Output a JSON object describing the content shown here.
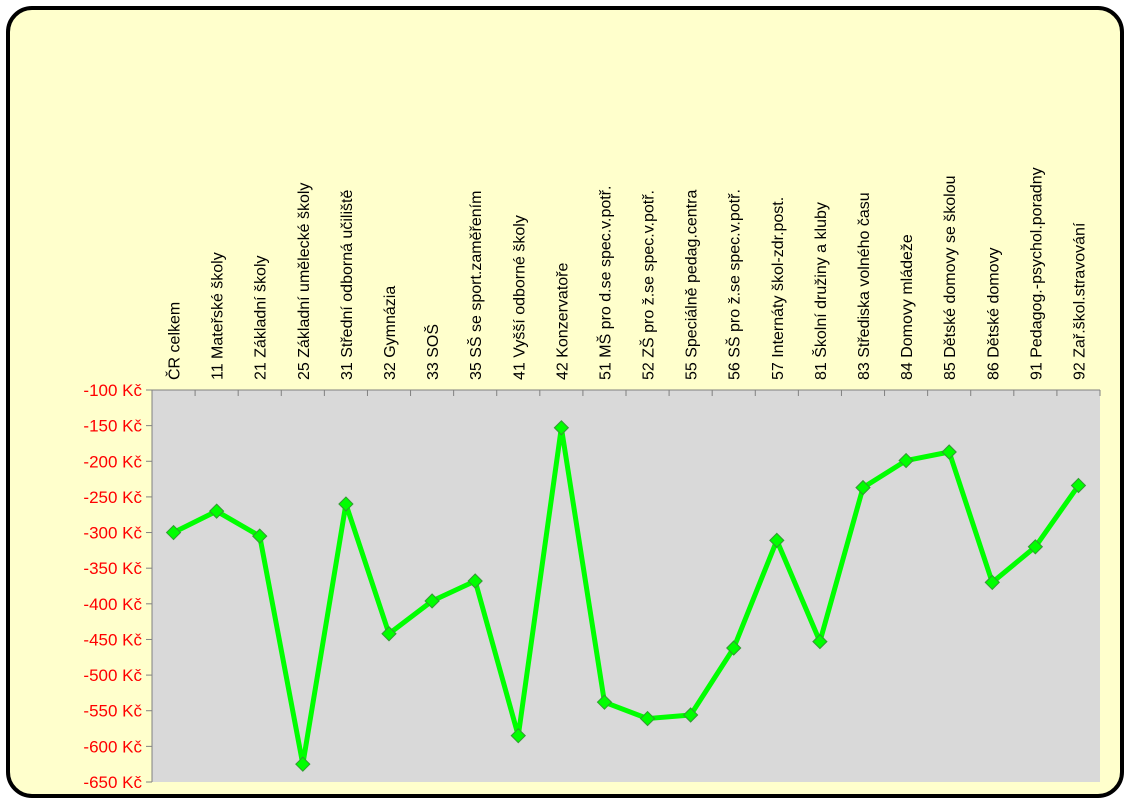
{
  "chart_data": {
    "type": "line",
    "title": "",
    "xlabel": "",
    "ylabel": "",
    "ylim": [
      -650,
      -100
    ],
    "y_ticks": [
      -100,
      -150,
      -200,
      -250,
      -300,
      -350,
      -400,
      -450,
      -500,
      -550,
      -600,
      -650
    ],
    "y_tick_suffix": " Kč",
    "x_axis_position": "top",
    "x_tick_rotation": -90,
    "grid": false,
    "legend": "none",
    "colors": {
      "background": "#ffffcc",
      "plot_area": "#d9d9d9",
      "line": "#00ff00",
      "marker": "#00ff00",
      "marker_edge": "#339933",
      "y_tick_labels": "#ff0000",
      "frame": "#000000"
    },
    "categories": [
      "ČR celkem",
      "11 Mateřské školy",
      "21 Základní školy",
      "25 Základní umělecké školy",
      "31 Střední odborná učiliště",
      "32 Gymnázia",
      "33 SOŠ",
      "35 SŠ se sport.zaměřením",
      "41 Vyšší odborné školy",
      "42 Konzervatoře",
      "51 MŠ pro d.se spec.v.potř.",
      "52 ZŠ pro ž.se spec.v.potř.",
      "55 Speciálně pedag.centra",
      "56 SŠ pro ž.se spec.v.potř.",
      "57 Internáty škol-zdr.post.",
      "81 Školní družiny a kluby",
      "83 Střediska volného času",
      "84 Domovy mládeže",
      "85 Dětské domovy se školou",
      "86 Dětské domovy",
      "91 Pedagog.-psychol.poradny",
      "92 Zař.škol.stravování"
    ],
    "series": [
      {
        "values": [
          -300,
          -270,
          -305,
          -625,
          -260,
          -442,
          -396,
          -368,
          -585,
          -153,
          -538,
          -561,
          -556,
          -462,
          -311,
          -453,
          -237,
          -199,
          -187,
          -370,
          -320,
          -234
        ]
      }
    ]
  }
}
